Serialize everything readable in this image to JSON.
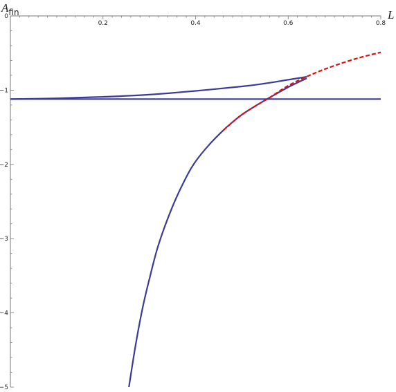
{
  "chart_data": {
    "type": "line",
    "title": "",
    "xlabel": "L",
    "ylabel": {
      "main": "A",
      "sub": "fin"
    },
    "xlim": [
      0,
      0.8
    ],
    "ylim": [
      -5,
      0
    ],
    "x_ticks": [
      0.2,
      0.4,
      0.6,
      0.8
    ],
    "x_tick_labels": [
      "0.2",
      "0.4",
      "0.6",
      "0.8"
    ],
    "y_ticks": [
      0,
      -1,
      -2,
      -3,
      -4,
      -5
    ],
    "y_tick_labels": [
      "0",
      "−1",
      "−2",
      "−3",
      "−4",
      "−5"
    ],
    "grid": false,
    "legend": "none",
    "series": [
      {
        "style": "solid",
        "color": "#3b3b99",
        "x": [
          0.0,
          0.1,
          0.2,
          0.3,
          0.4,
          0.5,
          0.55,
          0.6,
          0.64
        ],
        "y": [
          -1.12,
          -1.11,
          -1.09,
          -1.06,
          -1.01,
          -0.95,
          -0.91,
          -0.86,
          -0.82
        ]
      },
      {
        "style": "solid",
        "color": "#3b3b99",
        "x": [
          0.0,
          0.8
        ],
        "y": [
          -1.12,
          -1.12
        ]
      },
      {
        "style": "solid",
        "color": "#3b3b99",
        "x": [
          0.256,
          0.27,
          0.285,
          0.3,
          0.32,
          0.35,
          0.38,
          0.4,
          0.43,
          0.46,
          0.48,
          0.5,
          0.53,
          0.56,
          0.6,
          0.64
        ],
        "y": [
          -5.0,
          -4.45,
          -3.95,
          -3.55,
          -3.08,
          -2.57,
          -2.17,
          -1.96,
          -1.73,
          -1.54,
          -1.43,
          -1.33,
          -1.21,
          -1.1,
          -0.96,
          -0.84
        ]
      },
      {
        "style": "dashed",
        "color": "#dd1111",
        "x": [
          0.46,
          0.48,
          0.5,
          0.53,
          0.56,
          0.6,
          0.65,
          0.7,
          0.75,
          0.8
        ],
        "y": [
          -1.54,
          -1.43,
          -1.33,
          -1.21,
          -1.1,
          -0.94,
          -0.79,
          -0.67,
          -0.57,
          -0.49
        ]
      }
    ]
  }
}
